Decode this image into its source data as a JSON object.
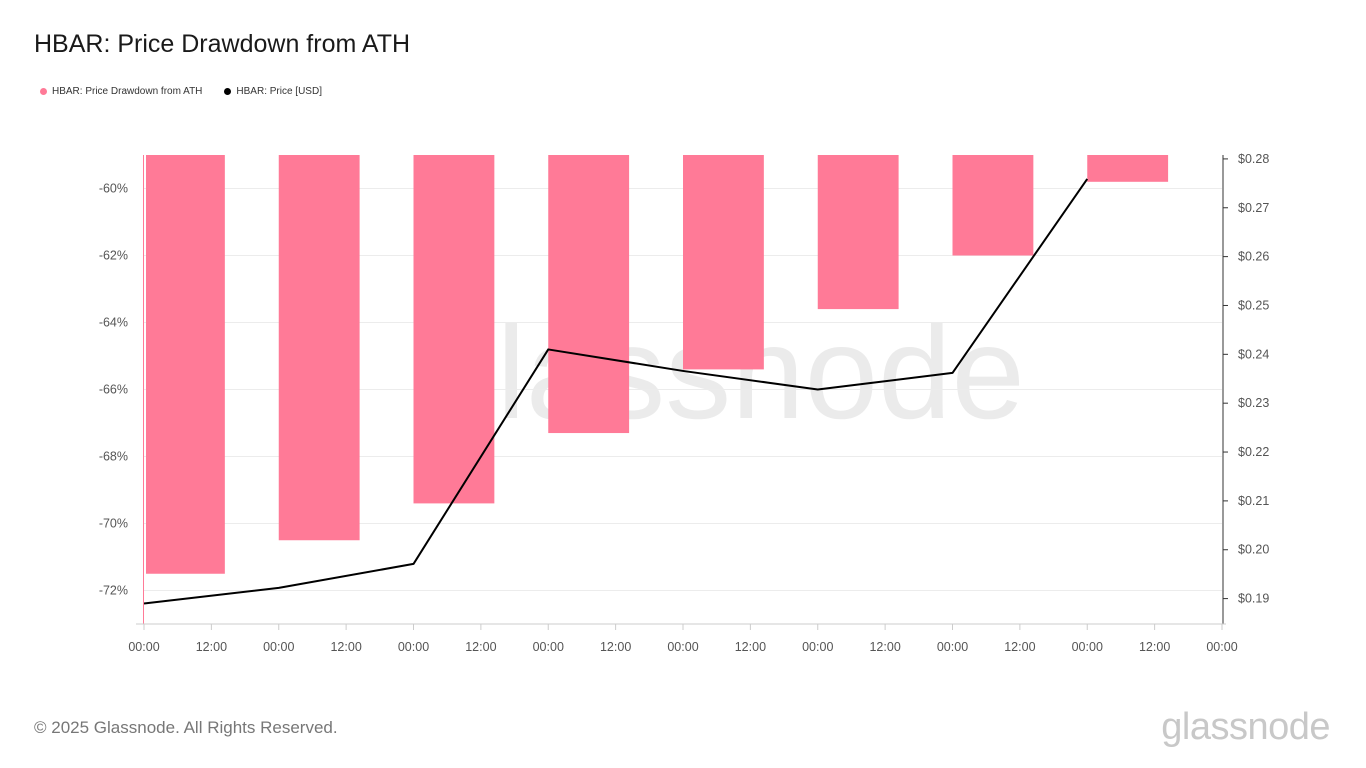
{
  "title": "HBAR: Price Drawdown from ATH",
  "legend": [
    {
      "label": "HBAR: Price Drawdown from ATH",
      "color": "#ff7a97",
      "icon": "dot"
    },
    {
      "label": "HBAR: Price [USD]",
      "color": "#000000",
      "icon": "dot"
    }
  ],
  "watermark": "glassnode",
  "footer": {
    "copyright": "© 2025 Glassnode. All Rights Reserved.",
    "brand": "glassnode"
  },
  "chart_data": {
    "type": "bar",
    "x_tick_labels": [
      "00:00",
      "12:00",
      "00:00",
      "12:00",
      "00:00",
      "12:00",
      "00:00",
      "12:00",
      "00:00",
      "12:00",
      "00:00",
      "12:00",
      "00:00",
      "12:00",
      "00:00",
      "12:00",
      "00:00"
    ],
    "y_left_ticks": [
      "-60%",
      "-62%",
      "-64%",
      "-66%",
      "-68%",
      "-70%",
      "-72%"
    ],
    "y_left_values": [
      -60,
      -62,
      -64,
      -66,
      -68,
      -70,
      -72
    ],
    "y_left_lim": [
      -73,
      -59
    ],
    "y_right_ticks": [
      "$0.28",
      "$0.27",
      "$0.26",
      "$0.25",
      "$0.24",
      "$0.23",
      "$0.22",
      "$0.21",
      "$0.20",
      "$0.19"
    ],
    "y_right_values": [
      0.28,
      0.27,
      0.26,
      0.25,
      0.24,
      0.23,
      0.22,
      0.21,
      0.2,
      0.19
    ],
    "y_right_lim": [
      0.1848,
      0.2808
    ],
    "grid": true,
    "legend_position": "top-left",
    "series": [
      {
        "name": "HBAR: Price Drawdown from ATH",
        "type": "bar",
        "axis": "left",
        "color": "#ff7a97",
        "x": [
          0,
          1,
          2,
          3,
          4,
          5,
          6,
          7
        ],
        "values": [
          -71.5,
          -70.5,
          -69.4,
          -67.3,
          -65.4,
          -63.6,
          -62.0,
          -59.8
        ]
      },
      {
        "name": "HBAR: Price [USD]",
        "type": "line",
        "axis": "right",
        "color": "#000000",
        "x": [
          0,
          2,
          4,
          6,
          8,
          10,
          12,
          14
        ],
        "values": [
          0.189,
          0.1922,
          0.1971,
          0.241,
          0.2366,
          0.2328,
          0.2362,
          0.2759
        ]
      }
    ]
  }
}
